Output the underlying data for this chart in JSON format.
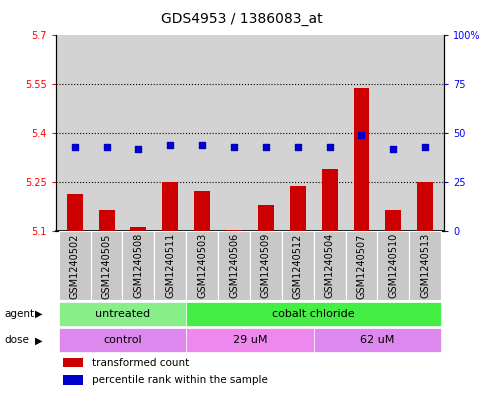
{
  "title": "GDS4953 / 1386083_at",
  "samples": [
    "GSM1240502",
    "GSM1240505",
    "GSM1240508",
    "GSM1240511",
    "GSM1240503",
    "GSM1240506",
    "GSM1240509",
    "GSM1240512",
    "GSM1240504",
    "GSM1240507",
    "GSM1240510",
    "GSM1240513"
  ],
  "transformed_counts": [
    5.215,
    5.165,
    5.115,
    5.25,
    5.225,
    5.105,
    5.18,
    5.24,
    5.29,
    5.54,
    5.165,
    5.25
  ],
  "percentile_ranks": [
    43,
    43,
    42,
    44,
    44,
    43,
    43,
    43,
    43,
    49,
    42,
    43
  ],
  "ylim_left": [
    5.1,
    5.7
  ],
  "ylim_right": [
    0,
    100
  ],
  "yticks_left": [
    5.1,
    5.25,
    5.4,
    5.55,
    5.7
  ],
  "yticks_right": [
    0,
    25,
    50,
    75,
    100
  ],
  "ytick_labels_left": [
    "5.1",
    "5.25",
    "5.4",
    "5.55",
    "5.7"
  ],
  "ytick_labels_right": [
    "0",
    "25",
    "50",
    "75",
    "100%"
  ],
  "hlines": [
    5.25,
    5.4,
    5.55
  ],
  "bar_color": "#cc0000",
  "dot_color": "#0000cc",
  "bar_bottom": 5.1,
  "agent_groups": [
    {
      "label": "untreated",
      "start": 0,
      "end": 3,
      "color": "#88ee88"
    },
    {
      "label": "cobalt chloride",
      "start": 4,
      "end": 11,
      "color": "#44ee44"
    }
  ],
  "dose_groups": [
    {
      "label": "control",
      "start": 0,
      "end": 3,
      "color": "#dd88ee"
    },
    {
      "label": "29 uM",
      "start": 4,
      "end": 7,
      "color": "#ee88ee"
    },
    {
      "label": "62 uM",
      "start": 8,
      "end": 11,
      "color": "#dd88ee"
    }
  ],
  "legend_items": [
    {
      "color": "#cc0000",
      "label": "transformed count"
    },
    {
      "color": "#0000cc",
      "label": "percentile rank within the sample"
    }
  ],
  "plot_bg_color": "#d3d3d3",
  "sample_bg_color": "#c8c8c8",
  "title_fontsize": 10,
  "tick_label_fontsize": 7,
  "bar_width": 0.5
}
